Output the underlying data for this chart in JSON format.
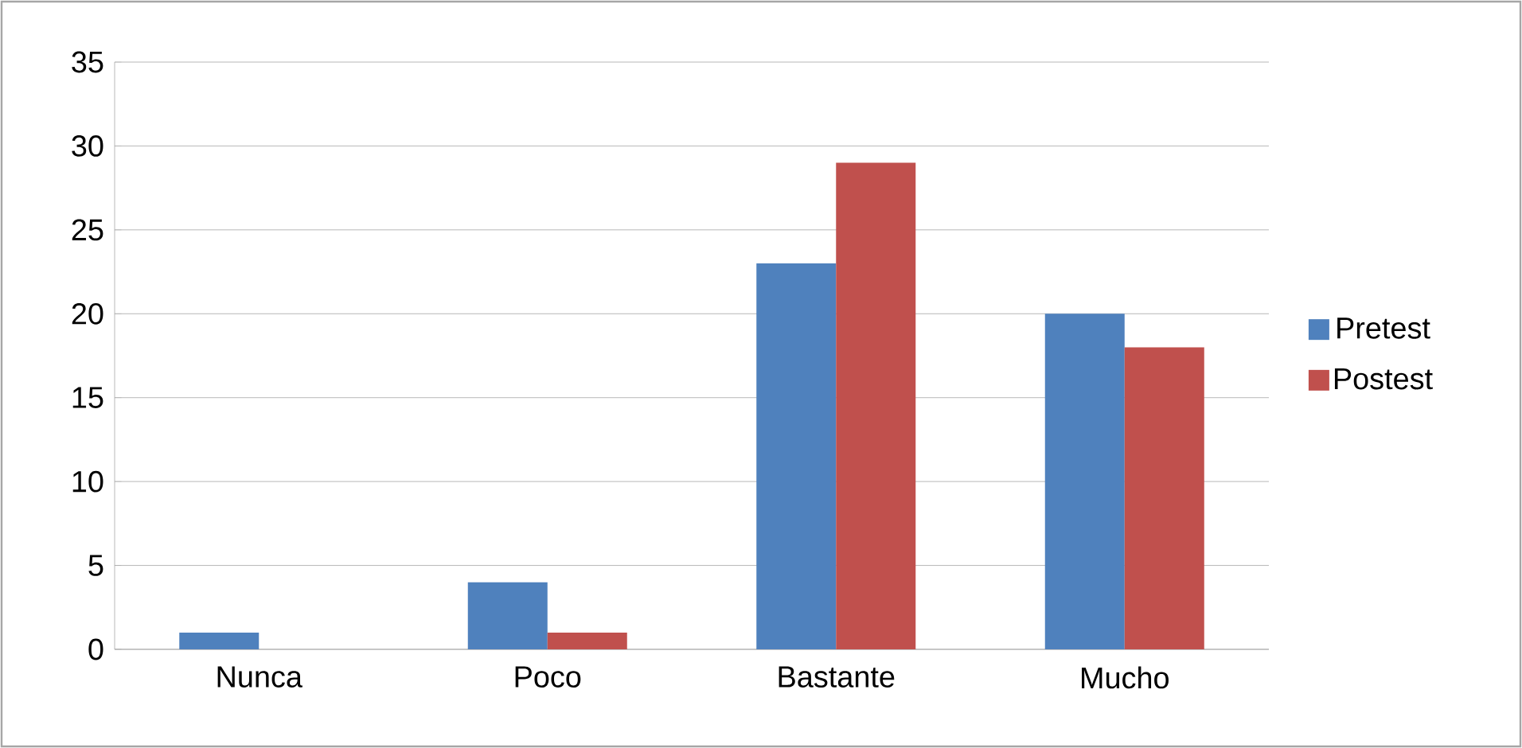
{
  "chart_data": {
    "type": "bar",
    "categories": [
      "Nunca",
      "Poco",
      "Bastante",
      "Mucho"
    ],
    "series": [
      {
        "name": "Pretest",
        "color": "#4f81bd",
        "values": [
          1,
          4,
          23,
          20
        ]
      },
      {
        "name": "Postest",
        "color": "#c0504d",
        "values": [
          0,
          1,
          29,
          18
        ]
      }
    ],
    "ylim": [
      0,
      35
    ],
    "yticks": [
      0,
      5,
      10,
      15,
      20,
      25,
      30,
      35
    ],
    "grid": "y",
    "legend": "right"
  }
}
